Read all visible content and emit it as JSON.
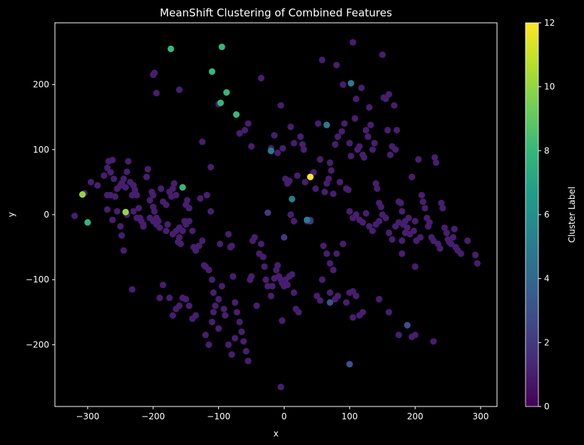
{
  "chart_data": {
    "type": "scatter",
    "title": "MeanShift Clustering of Combined Features",
    "xlabel": "x",
    "ylabel": "y",
    "xlim": [
      -350,
      325
    ],
    "ylim": [
      -295,
      295
    ],
    "xticks": [
      -300,
      -200,
      -100,
      0,
      100,
      200,
      300
    ],
    "yticks": [
      -200,
      -100,
      0,
      100,
      200
    ],
    "xtick_labels": [
      "−300",
      "−200",
      "−100",
      "0",
      "100",
      "200",
      "300"
    ],
    "ytick_labels": [
      "−200",
      "−100",
      "0",
      "100",
      "200"
    ],
    "grid": false,
    "colorbar": {
      "label": "Cluster Label",
      "min": 0,
      "max": 12,
      "ticks": [
        0,
        2,
        4,
        6,
        8,
        10,
        12
      ],
      "tick_labels": [
        "0",
        "2",
        "4",
        "6",
        "8",
        "10",
        "12"
      ],
      "colormap": "viridis",
      "colors": [
        "#440154",
        "#482878",
        "#3e4a89",
        "#31688e",
        "#26828e",
        "#1f9e89",
        "#35b779",
        "#6ece58",
        "#b5de2b",
        "#fde725"
      ]
    },
    "points": [
      [
        -320,
        -2,
        1
      ],
      [
        -305,
        33,
        1
      ],
      [
        -295,
        50,
        1
      ],
      [
        -285,
        45,
        1
      ],
      [
        -275,
        60,
        1
      ],
      [
        -270,
        72,
        1
      ],
      [
        -268,
        82,
        1
      ],
      [
        -262,
        84,
        1
      ],
      [
        -265,
        65,
        1
      ],
      [
        -260,
        55,
        1
      ],
      [
        -270,
        30,
        1
      ],
      [
        -265,
        30,
        1
      ],
      [
        -258,
        28,
        1
      ],
      [
        -255,
        40,
        1
      ],
      [
        -250,
        45,
        1
      ],
      [
        -248,
        48,
        1
      ],
      [
        -245,
        55,
        1
      ],
      [
        -242,
        42,
        1
      ],
      [
        -240,
        66,
        1
      ],
      [
        -238,
        82,
        1
      ],
      [
        -235,
        50,
        1
      ],
      [
        -232,
        30,
        1
      ],
      [
        -230,
        45,
        1
      ],
      [
        -228,
        38,
        1
      ],
      [
        -225,
        30,
        1
      ],
      [
        -222,
        10,
        1
      ],
      [
        -220,
        -5,
        1
      ],
      [
        -218,
        -10,
        1
      ],
      [
        -215,
        -18,
        1
      ],
      [
        -210,
        58,
        1
      ],
      [
        -208,
        70,
        1
      ],
      [
        -205,
        22,
        1
      ],
      [
        -202,
        35,
        1
      ],
      [
        -200,
        30,
        1
      ],
      [
        -200,
        12,
        1
      ],
      [
        -198,
        5,
        1
      ],
      [
        -195,
        -5,
        1
      ],
      [
        -192,
        -10,
        1
      ],
      [
        -188,
        40,
        1
      ],
      [
        -185,
        20,
        1
      ],
      [
        -180,
        15,
        1
      ],
      [
        -178,
        -15,
        1
      ],
      [
        -175,
        35,
        1
      ],
      [
        -172,
        28,
        1
      ],
      [
        -170,
        40,
        1
      ],
      [
        -168,
        48,
        1
      ],
      [
        -165,
        30,
        1
      ],
      [
        -162,
        -42,
        1
      ],
      [
        -160,
        -35,
        1
      ],
      [
        -158,
        -45,
        1
      ],
      [
        -155,
        -25,
        1
      ],
      [
        -152,
        -10,
        1
      ],
      [
        -150,
        15,
        1
      ],
      [
        -148,
        22,
        1
      ],
      [
        -145,
        10,
        1
      ],
      [
        -140,
        -25,
        1
      ],
      [
        -138,
        -50,
        1
      ],
      [
        -135,
        -55,
        1
      ],
      [
        -130,
        -48,
        1
      ],
      [
        -128,
        25,
        1
      ],
      [
        -125,
        -40,
        1
      ],
      [
        -122,
        -78,
        1
      ],
      [
        -120,
        -80,
        1
      ],
      [
        -118,
        30,
        1
      ],
      [
        -115,
        -85,
        1
      ],
      [
        -112,
        5,
        1
      ],
      [
        -110,
        -100,
        1
      ],
      [
        -108,
        -120,
        1
      ],
      [
        -105,
        -140,
        1
      ],
      [
        -100,
        -130,
        1
      ],
      [
        -98,
        -45,
        1
      ],
      [
        -95,
        -110,
        1
      ],
      [
        -92,
        -145,
        1
      ],
      [
        -90,
        -155,
        1
      ],
      [
        -85,
        -30,
        1
      ],
      [
        -82,
        -50,
        1
      ],
      [
        -80,
        -48,
        1
      ],
      [
        -78,
        -95,
        1
      ],
      [
        -75,
        -135,
        1
      ],
      [
        -72,
        -150,
        1
      ],
      [
        -68,
        -165,
        1
      ],
      [
        -65,
        -180,
        1
      ],
      [
        -62,
        -195,
        1
      ],
      [
        -58,
        -210,
        1
      ],
      [
        -55,
        -225,
        1
      ],
      [
        -52,
        -100,
        1
      ],
      [
        -50,
        -95,
        1
      ],
      [
        -48,
        -40,
        1
      ],
      [
        -45,
        -35,
        1
      ],
      [
        -42,
        -140,
        1
      ],
      [
        -38,
        -60,
        1
      ],
      [
        -35,
        -45,
        1
      ],
      [
        -32,
        -65,
        1
      ],
      [
        -30,
        -80,
        1
      ],
      [
        -28,
        -100,
        1
      ],
      [
        -25,
        -110,
        1
      ],
      [
        -20,
        -125,
        1
      ],
      [
        -18,
        -110,
        1
      ],
      [
        -15,
        -98,
        1
      ],
      [
        -12,
        -85,
        1
      ],
      [
        -10,
        -78,
        1
      ],
      [
        -8,
        -95,
        1
      ],
      [
        -5,
        -100,
        1
      ],
      [
        -3,
        -105,
        1
      ],
      [
        0,
        -110,
        1
      ],
      [
        2,
        -100,
        1
      ],
      [
        5,
        -108,
        1
      ],
      [
        8,
        -95,
        1
      ],
      [
        12,
        -92,
        1
      ],
      [
        15,
        -120,
        1
      ],
      [
        18,
        -145,
        1
      ],
      [
        22,
        -150,
        1
      ],
      [
        -5,
        -265,
        1
      ],
      [
        -3,
        -163,
        1
      ],
      [
        -85,
        -200,
        1
      ],
      [
        -80,
        -215,
        1
      ],
      [
        -75,
        -190,
        1
      ],
      [
        -120,
        -185,
        1
      ],
      [
        -115,
        -200,
        1
      ],
      [
        -110,
        -165,
        1
      ],
      [
        -108,
        -150,
        1
      ],
      [
        -100,
        -175,
        1
      ],
      [
        -135,
        -155,
        1
      ],
      [
        -140,
        -160,
        1
      ],
      [
        -145,
        -140,
        1
      ],
      [
        -150,
        -130,
        1
      ],
      [
        -155,
        -128,
        1
      ],
      [
        -160,
        -140,
        1
      ],
      [
        -165,
        -145,
        1
      ],
      [
        -170,
        -155,
        1
      ],
      [
        -175,
        -128,
        1
      ],
      [
        -190,
        -128,
        1
      ],
      [
        -185,
        -108,
        1
      ],
      [
        -232,
        -115,
        1
      ],
      [
        -245,
        -55,
        1
      ],
      [
        -248,
        -32,
        1
      ],
      [
        -250,
        -18,
        1
      ],
      [
        -255,
        5,
        1
      ],
      [
        -262,
        -8,
        1
      ],
      [
        -270,
        8,
        1
      ],
      [
        -240,
        0,
        1
      ],
      [
        -230,
        5,
        1
      ],
      [
        -225,
        -5,
        1
      ],
      [
        -215,
        -15,
        1
      ],
      [
        -205,
        -5,
        1
      ],
      [
        -200,
        -10,
        1
      ],
      [
        -195,
        -15,
        1
      ],
      [
        -190,
        -20,
        1
      ],
      [
        -180,
        -25,
        1
      ],
      [
        -170,
        -30,
        1
      ],
      [
        -165,
        -25,
        1
      ],
      [
        -160,
        -20,
        1
      ],
      [
        -150,
        -15,
        1
      ],
      [
        -145,
        -10,
        1
      ],
      [
        -195,
        187,
        1
      ],
      [
        -200,
        215,
        1
      ],
      [
        -198,
        218,
        1
      ],
      [
        -160,
        192,
        1
      ],
      [
        -112,
        73,
        1
      ],
      [
        -125,
        112,
        1
      ],
      [
        -100,
        170,
        1
      ],
      [
        -68,
        125,
        1
      ],
      [
        -60,
        130,
        1
      ],
      [
        -55,
        140,
        1
      ],
      [
        -50,
        105,
        1
      ],
      [
        -35,
        210,
        1
      ],
      [
        -20,
        102,
        1
      ],
      [
        -15,
        122,
        1
      ],
      [
        -10,
        95,
        1
      ],
      [
        -5,
        168,
        1
      ],
      [
        -2,
        102,
        1
      ],
      [
        2,
        55,
        1
      ],
      [
        5,
        48,
        1
      ],
      [
        8,
        52,
        1
      ],
      [
        10,
        135,
        1
      ],
      [
        15,
        110,
        1
      ],
      [
        20,
        60,
        1
      ],
      [
        25,
        120,
        1
      ],
      [
        28,
        108,
        1
      ],
      [
        30,
        100,
        1
      ],
      [
        32,
        50,
        1
      ],
      [
        35,
        -10,
        1
      ],
      [
        40,
        -8,
        1
      ],
      [
        45,
        65,
        1
      ],
      [
        48,
        40,
        1
      ],
      [
        52,
        140,
        1
      ],
      [
        55,
        85,
        1
      ],
      [
        58,
        238,
        1
      ],
      [
        62,
        35,
        1
      ],
      [
        65,
        48,
        1
      ],
      [
        68,
        55,
        1
      ],
      [
        70,
        80,
        1
      ],
      [
        72,
        68,
        1
      ],
      [
        75,
        32,
        1
      ],
      [
        78,
        108,
        1
      ],
      [
        80,
        230,
        1
      ],
      [
        82,
        120,
        1
      ],
      [
        85,
        50,
        1
      ],
      [
        88,
        128,
        1
      ],
      [
        90,
        200,
        1
      ],
      [
        92,
        140,
        1
      ],
      [
        95,
        40,
        1
      ],
      [
        98,
        38,
        1
      ],
      [
        100,
        110,
        1
      ],
      [
        102,
        90,
        1
      ],
      [
        105,
        265,
        1
      ],
      [
        108,
        148,
        1
      ],
      [
        110,
        178,
        1
      ],
      [
        112,
        100,
        1
      ],
      [
        115,
        105,
        1
      ],
      [
        118,
        195,
        1
      ],
      [
        120,
        92,
        1
      ],
      [
        122,
        88,
        1
      ],
      [
        125,
        130,
        1
      ],
      [
        128,
        120,
        1
      ],
      [
        130,
        165,
        1
      ],
      [
        132,
        138,
        1
      ],
      [
        135,
        100,
        1
      ],
      [
        138,
        110,
        1
      ],
      [
        140,
        48,
        1
      ],
      [
        142,
        40,
        1
      ],
      [
        145,
        18,
        1
      ],
      [
        148,
        12,
        1
      ],
      [
        150,
        246,
        1
      ],
      [
        152,
        180,
        1
      ],
      [
        155,
        178,
        1
      ],
      [
        158,
        130,
        1
      ],
      [
        160,
        185,
        1
      ],
      [
        162,
        92,
        1
      ],
      [
        165,
        105,
        1
      ],
      [
        168,
        168,
        1
      ],
      [
        170,
        100,
        1
      ],
      [
        172,
        130,
        1
      ],
      [
        175,
        20,
        1
      ],
      [
        178,
        18,
        1
      ],
      [
        180,
        5,
        1
      ],
      [
        182,
        -15,
        1
      ],
      [
        185,
        -10,
        1
      ],
      [
        188,
        -20,
        1
      ],
      [
        190,
        -5,
        1
      ],
      [
        192,
        -30,
        1
      ],
      [
        195,
        58,
        1
      ],
      [
        198,
        -25,
        1
      ],
      [
        200,
        -10,
        1
      ],
      [
        202,
        -40,
        1
      ],
      [
        205,
        85,
        1
      ],
      [
        208,
        -35,
        1
      ],
      [
        210,
        30,
        1
      ],
      [
        212,
        20,
        1
      ],
      [
        215,
        10,
        1
      ],
      [
        218,
        -5,
        1
      ],
      [
        220,
        -18,
        1
      ],
      [
        222,
        -12,
        1
      ],
      [
        225,
        -35,
        1
      ],
      [
        228,
        -40,
        1
      ],
      [
        230,
        88,
        1
      ],
      [
        232,
        80,
        1
      ],
      [
        235,
        -45,
        1
      ],
      [
        238,
        -52,
        1
      ],
      [
        240,
        18,
        1
      ],
      [
        242,
        10,
        1
      ],
      [
        245,
        -20,
        1
      ],
      [
        248,
        -28,
        1
      ],
      [
        250,
        -38,
        1
      ],
      [
        252,
        -42,
        1
      ],
      [
        255,
        -45,
        1
      ],
      [
        258,
        -35,
        1
      ],
      [
        260,
        -22,
        1
      ],
      [
        262,
        -50,
        1
      ],
      [
        265,
        -55,
        1
      ],
      [
        270,
        -60,
        1
      ],
      [
        280,
        -40,
        1
      ],
      [
        292,
        -62,
        1
      ],
      [
        295,
        -75,
        1
      ],
      [
        100,
        5,
        1
      ],
      [
        105,
        -5,
        1
      ],
      [
        110,
        0,
        1
      ],
      [
        115,
        -8,
        1
      ],
      [
        120,
        -12,
        1
      ],
      [
        125,
        2,
        1
      ],
      [
        130,
        -18,
        1
      ],
      [
        135,
        -25,
        1
      ],
      [
        140,
        -15,
        1
      ],
      [
        145,
        -10,
        1
      ],
      [
        150,
        0,
        1
      ],
      [
        155,
        -5,
        1
      ],
      [
        160,
        -28,
        1
      ],
      [
        165,
        -38,
        1
      ],
      [
        170,
        -18,
        1
      ],
      [
        175,
        -12,
        1
      ],
      [
        180,
        -40,
        1
      ],
      [
        185,
        -28,
        1
      ],
      [
        90,
        -45,
        1
      ],
      [
        80,
        -60,
        1
      ],
      [
        75,
        -85,
        1
      ],
      [
        70,
        -75,
        1
      ],
      [
        65,
        -60,
        1
      ],
      [
        60,
        -48,
        1
      ],
      [
        58,
        -100,
        1
      ],
      [
        70,
        -120,
        1
      ],
      [
        78,
        -130,
        1
      ],
      [
        82,
        -125,
        1
      ],
      [
        100,
        -120,
        1
      ],
      [
        105,
        -118,
        1
      ],
      [
        110,
        -125,
        1
      ],
      [
        115,
        -155,
        1
      ],
      [
        120,
        -150,
        1
      ],
      [
        145,
        -130,
        1
      ],
      [
        160,
        -150,
        1
      ],
      [
        175,
        -185,
        1
      ],
      [
        195,
        -188,
        1
      ],
      [
        200,
        -185,
        1
      ],
      [
        228,
        -195,
        1
      ],
      [
        50,
        -125,
        1
      ],
      [
        55,
        -132,
        1
      ],
      [
        105,
        -158,
        1
      ],
      [
        95,
        -135,
        1
      ],
      [
        200,
        -80,
        1
      ],
      [
        180,
        -60,
        1
      ],
      [
        10,
        0,
        1
      ],
      [
        15,
        -10,
        1
      ],
      [
        -8,
        -95,
        1
      ],
      [
        -25,
        3,
        2
      ],
      [
        0,
        -35,
        2
      ],
      [
        40,
        -10,
        2
      ],
      [
        188,
        -170,
        3
      ],
      [
        100,
        -230,
        3
      ],
      [
        70,
        -135,
        3
      ],
      [
        -20,
        98,
        5
      ],
      [
        12,
        24,
        5
      ],
      [
        35,
        -8,
        5
      ],
      [
        102,
        202,
        5
      ],
      [
        65,
        138,
        5
      ],
      [
        -300,
        -12,
        8
      ],
      [
        -95,
        258,
        8
      ],
      [
        -173,
        255,
        8
      ],
      [
        -110,
        220,
        8
      ],
      [
        -88,
        188,
        8
      ],
      [
        -97,
        172,
        8
      ],
      [
        -73,
        154,
        8
      ],
      [
        -155,
        42,
        8
      ],
      [
        -308,
        31,
        10
      ],
      [
        -242,
        4,
        10
      ],
      [
        40,
        58,
        12
      ]
    ]
  }
}
